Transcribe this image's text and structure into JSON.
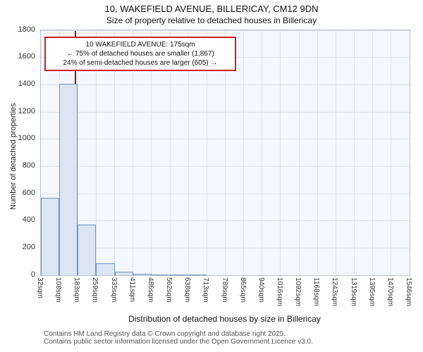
{
  "chart_data": {
    "type": "bar",
    "title": "10, WAKEFIELD AVENUE, BILLERICAY, CM12 9DN",
    "subtitle": "Size of property relative to detached houses in Billericay",
    "xlabel": "Distribution of detached houses by size in Billericay",
    "ylabel": "Number of detached properties",
    "ylim": [
      0,
      1800
    ],
    "ytick_step": 200,
    "x_range_sqm": [
      32,
      1546
    ],
    "bin_labels": [
      "32sqm",
      "108sqm",
      "183sqm",
      "259sqm",
      "335sqm",
      "411sqm",
      "486sqm",
      "562sqm",
      "638sqm",
      "713sqm",
      "789sqm",
      "865sqm",
      "940sqm",
      "1016sqm",
      "1092sqm",
      "1168sqm",
      "1243sqm",
      "1319sqm",
      "1395sqm",
      "1470sqm",
      "1546sqm"
    ],
    "values": [
      570,
      1405,
      370,
      90,
      25,
      10,
      7,
      6,
      3,
      0,
      0,
      0,
      0,
      0,
      0,
      0,
      0,
      0,
      0,
      0
    ],
    "marker": {
      "value_sqm": 175
    },
    "annotation_lines": [
      "10 WAKEFIELD AVENUE: 175sqm",
      "← 75% of detached houses are smaller (1,867)",
      "24% of semi-detached houses are larger (605) →"
    ],
    "grid": true,
    "legend": "none",
    "colors": {
      "bar_fill": "#dbe5f3",
      "bar_border": "#6d94c9",
      "marker_line": "#a00000",
      "annotation_border": "#cc2222",
      "grid_line": "#dde3f0",
      "plot_background": "#f4f7fc"
    }
  },
  "footer": {
    "line1": "Contains HM Land Registry data © Crown copyright and database right 2025.",
    "line2": "Contains public sector information licensed under the Open Government Licence v3.0."
  }
}
